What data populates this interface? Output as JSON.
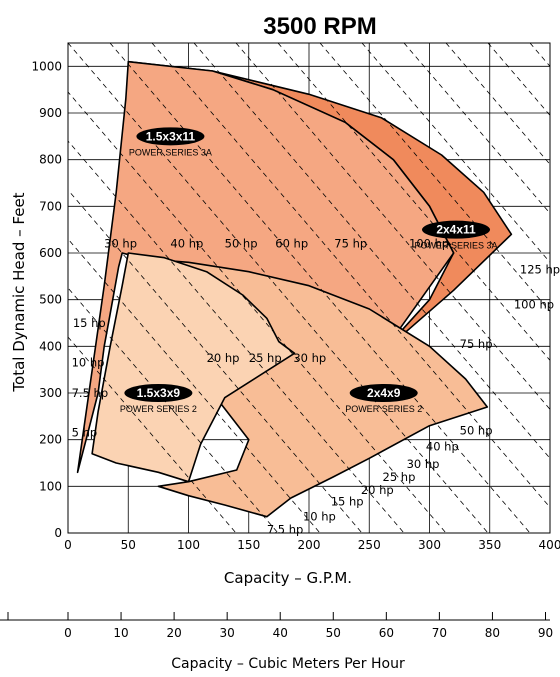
{
  "chart_data": {
    "type": "area",
    "title": "3500 RPM",
    "xlabel": "Capacity – G.P.M.",
    "ylabel": "Total Dynamic Head – Feet",
    "xlim": [
      0,
      400
    ],
    "ylim": [
      0,
      1050
    ],
    "x_ticks": [
      "0",
      "50",
      "100",
      "150",
      "200",
      "250",
      "300",
      "350",
      "400"
    ],
    "y_ticks": [
      "0",
      "100",
      "200",
      "300",
      "400",
      "500",
      "600",
      "700",
      "800",
      "900",
      "1000"
    ],
    "grid": true,
    "secondary_axis": {
      "xlabel": "Capacity – Cubic Meters Per Hour",
      "ticks": [
        "0",
        "10",
        "20",
        "30",
        "40",
        "50",
        "60",
        "70",
        "80",
        "90"
      ],
      "tick_values": [
        0,
        10,
        20,
        30,
        40,
        50,
        60,
        70,
        80,
        90
      ]
    },
    "regions": [
      {
        "model": "2x4x11",
        "series_name": "POWER SERIES 3A",
        "color": "#F08A5C",
        "points": [
          [
            50,
            1010
          ],
          [
            120,
            990
          ],
          [
            200,
            940
          ],
          [
            260,
            890
          ],
          [
            310,
            810
          ],
          [
            345,
            730
          ],
          [
            368,
            640
          ],
          [
            320,
            520
          ],
          [
            280,
            430
          ],
          [
            265,
            400
          ],
          [
            300,
            500
          ],
          [
            320,
            600
          ],
          [
            300,
            700
          ],
          [
            270,
            800
          ],
          [
            230,
            880
          ],
          [
            170,
            950
          ],
          [
            120,
            990
          ],
          [
            55,
            1000
          ]
        ],
        "label_at": [
          322,
          650
        ]
      },
      {
        "model": "1.5x3x11",
        "series_name": "POWER SERIES 3A",
        "color": "#F5A782",
        "points": [
          [
            50,
            1010
          ],
          [
            120,
            990
          ],
          [
            170,
            950
          ],
          [
            230,
            880
          ],
          [
            270,
            800
          ],
          [
            300,
            700
          ],
          [
            320,
            600
          ],
          [
            265,
            400
          ],
          [
            240,
            390
          ],
          [
            150,
            470
          ],
          [
            75,
            580
          ],
          [
            45,
            600
          ],
          [
            42,
            570
          ],
          [
            35,
            470
          ],
          [
            30,
            400
          ],
          [
            25,
            300
          ],
          [
            15,
            200
          ],
          [
            10,
            150
          ],
          [
            8,
            130
          ],
          [
            30,
            530
          ],
          [
            40,
            730
          ],
          [
            48,
            930
          ]
        ],
        "label_at": [
          85,
          850
        ]
      },
      {
        "model": "2x4x9",
        "series_name": "POWER SERIES 2",
        "color": "#F8BD96",
        "points": [
          [
            50,
            590
          ],
          [
            100,
            580
          ],
          [
            150,
            560
          ],
          [
            200,
            530
          ],
          [
            250,
            480
          ],
          [
            300,
            400
          ],
          [
            330,
            330
          ],
          [
            348,
            270
          ],
          [
            300,
            230
          ],
          [
            250,
            160
          ],
          [
            220,
            120
          ],
          [
            185,
            75
          ],
          [
            165,
            35
          ],
          [
            130,
            60
          ],
          [
            100,
            80
          ],
          [
            75,
            100
          ],
          [
            100,
            110
          ],
          [
            140,
            135
          ],
          [
            150,
            200
          ],
          [
            120,
            300
          ],
          [
            100,
            370
          ],
          [
            115,
            390
          ],
          [
            105,
            450
          ],
          [
            80,
            510
          ],
          [
            60,
            560
          ]
        ],
        "label_at": [
          262,
          300
        ]
      },
      {
        "model": "1.5x3x9",
        "series_name": "POWER SERIES 2",
        "color": "#FBD3B3",
        "points": [
          [
            50,
            600
          ],
          [
            80,
            590
          ],
          [
            115,
            560
          ],
          [
            145,
            510
          ],
          [
            165,
            460
          ],
          [
            175,
            410
          ],
          [
            188,
            385
          ],
          [
            130,
            290
          ],
          [
            110,
            190
          ],
          [
            100,
            110
          ],
          [
            75,
            130
          ],
          [
            40,
            150
          ],
          [
            20,
            170
          ],
          [
            25,
            260
          ],
          [
            35,
            400
          ],
          [
            45,
            530
          ]
        ],
        "label_at": [
          75,
          300
        ]
      }
    ],
    "hp_labels": [
      {
        "text": "30 hp",
        "at": [
          30,
          620
        ]
      },
      {
        "text": "40 hp",
        "at": [
          85,
          620
        ]
      },
      {
        "text": "50 hp",
        "at": [
          130,
          620
        ]
      },
      {
        "text": "60 hp",
        "at": [
          172,
          620
        ]
      },
      {
        "text": "75 hp",
        "at": [
          221,
          620
        ]
      },
      {
        "text": "100 hp",
        "at": [
          283,
          620
        ]
      },
      {
        "text": "125 hp",
        "at": [
          375,
          565
        ]
      },
      {
        "text": "100 hp",
        "at": [
          370,
          490
        ]
      },
      {
        "text": "75 hp",
        "at": [
          325,
          405
        ]
      },
      {
        "text": "15 hp",
        "at": [
          4,
          450
        ]
      },
      {
        "text": "10 hp",
        "at": [
          3,
          365
        ]
      },
      {
        "text": "7.5 hp",
        "at": [
          3,
          300
        ]
      },
      {
        "text": "5 hp",
        "at": [
          3,
          215
        ]
      },
      {
        "text": "20 hp",
        "at": [
          115,
          375
        ]
      },
      {
        "text": "25 hp",
        "at": [
          150,
          375
        ]
      },
      {
        "text": "30 hp",
        "at": [
          187,
          375
        ]
      },
      {
        "text": "50 hp",
        "at": [
          325,
          220
        ]
      },
      {
        "text": "40 hp",
        "at": [
          297,
          185
        ]
      },
      {
        "text": "30 hp",
        "at": [
          281,
          148
        ]
      },
      {
        "text": "25 hp",
        "at": [
          261,
          120
        ]
      },
      {
        "text": "20 hp",
        "at": [
          243,
          92
        ]
      },
      {
        "text": "15 hp",
        "at": [
          218,
          68
        ]
      },
      {
        "text": "10 hp",
        "at": [
          195,
          35
        ]
      },
      {
        "text": "7.5 hp",
        "at": [
          165,
          8
        ]
      }
    ]
  }
}
